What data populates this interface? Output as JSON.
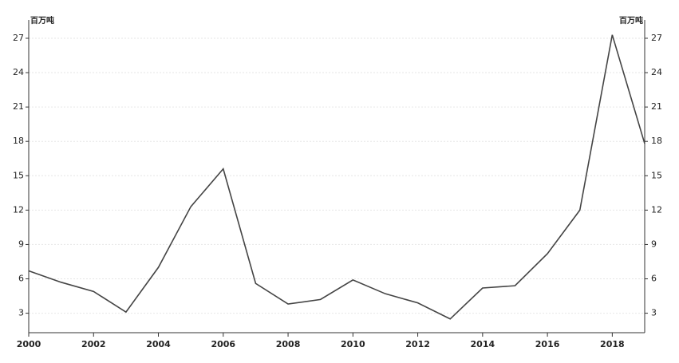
{
  "chart_data": {
    "type": "line",
    "y_label": "百万吨",
    "y2_label": "百万吨",
    "x": [
      2000,
      2001,
      2002,
      2003,
      2004,
      2005,
      2006,
      2007,
      2008,
      2009,
      2010,
      2011,
      2012,
      2013,
      2014,
      2015,
      2016,
      2017,
      2018,
      2019
    ],
    "series": [
      {
        "color": "#444444",
        "values": [
          6.7,
          5.7,
          4.9,
          3.1,
          7.0,
          12.3,
          15.6,
          5.6,
          3.8,
          4.2,
          5.9,
          4.7,
          3.9,
          2.5,
          5.2,
          5.4,
          8.2,
          12.0,
          27.3,
          17.8
        ]
      }
    ],
    "xlim": [
      2000,
      2019
    ],
    "xticks": [
      2000,
      2002,
      2004,
      2006,
      2008,
      2010,
      2012,
      2014,
      2016,
      2018
    ],
    "ylim": [
      1.3,
      28.6
    ],
    "yticks": [
      3,
      6,
      9,
      12,
      15,
      18,
      21,
      24,
      27
    ],
    "y2lim": [
      1.3,
      28.6
    ],
    "y2ticks": [
      3,
      6,
      9,
      12,
      15,
      18,
      21,
      24,
      27
    ],
    "grid": true
  }
}
